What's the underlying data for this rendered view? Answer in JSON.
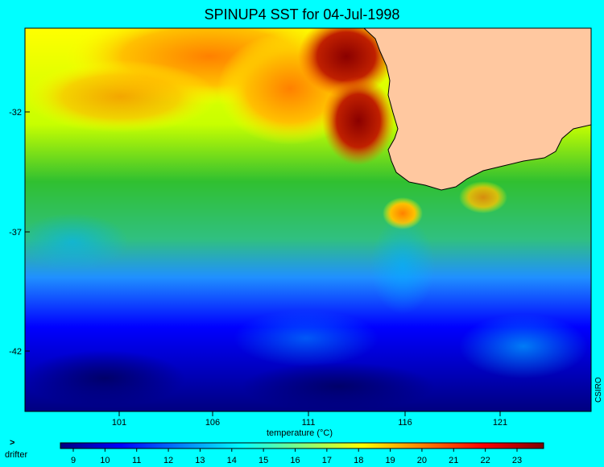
{
  "title": "SPINUP4 SST for 04-Jul-1998",
  "x_ticks": [
    "101",
    "106",
    "111",
    "116",
    "121"
  ],
  "y_ticks": [
    "-32",
    "-37",
    "-42"
  ],
  "x_label": "temperature (°C)",
  "credit": "CSIRO",
  "legend": {
    "marker": ">",
    "label": "drifter",
    "marker_color": "#c000c0"
  },
  "colorbar": {
    "ticks": [
      "9",
      "10",
      "11",
      "12",
      "13",
      "14",
      "15",
      "16",
      "17",
      "18",
      "19",
      "20",
      "21",
      "22",
      "23"
    ],
    "colors": [
      "#00007f",
      "#0000ff",
      "#0080ff",
      "#00ffff",
      "#80ff80",
      "#ffff00",
      "#ff8000",
      "#ff0000",
      "#7f0000"
    ]
  },
  "colors": {
    "background": "#00ffff",
    "land": "#ffc8a0"
  }
}
